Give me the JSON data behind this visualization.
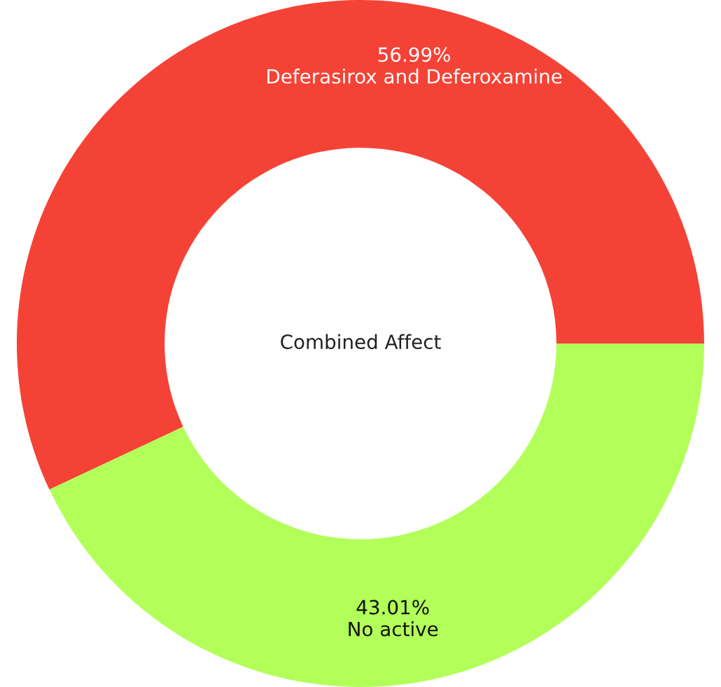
{
  "chart_data": {
    "type": "donut",
    "title": "Combined Affect",
    "categories": [
      "Deferasirox and Deferoxamine",
      "No active"
    ],
    "values": [
      56.99,
      43.01
    ],
    "colors": [
      "#f44336",
      "#b2ff59"
    ],
    "value_labels": [
      "56.99%",
      "43.01%"
    ],
    "legend": false
  }
}
